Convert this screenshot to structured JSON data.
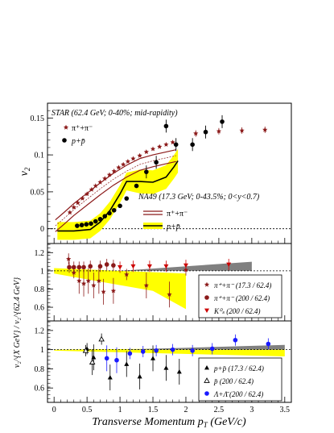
{
  "chart_data": [
    {
      "type": "scatter",
      "panel": "top",
      "ylabel": "v",
      "ylabel_sub": "2",
      "ylim": [
        -0.02,
        0.17
      ],
      "yticks": [
        0,
        0.05,
        0.1,
        0.15
      ],
      "ytick_labels": [
        "0",
        "0.05",
        "0.1",
        "0.15"
      ],
      "legend_star_title": "STAR (62.4 GeV; 0-40%; mid-rapidity)",
      "legend_star": [
        "π⁺+π⁻",
        "p+p̄"
      ],
      "legend_na49_title": "NA49 (17.3 GeV; 0-43.5%; 0<y<0.7)",
      "legend_na49": [
        "π⁺+π⁻",
        "p+p̄"
      ],
      "series": [
        {
          "name": "π⁺+π⁻",
          "marker": "star",
          "color": "#8b1a1a",
          "x": [
            0.24,
            0.3,
            0.36,
            0.43,
            0.5,
            0.57,
            0.63,
            0.7,
            0.77,
            0.84,
            0.91,
            0.98,
            1.05,
            1.12,
            1.2,
            1.3,
            1.4,
            1.5,
            1.6,
            1.7,
            1.8,
            2.15,
            2.5,
            2.85,
            3.2
          ],
          "y": [
            0.022,
            0.029,
            0.035,
            0.041,
            0.047,
            0.053,
            0.058,
            0.063,
            0.068,
            0.073,
            0.078,
            0.083,
            0.087,
            0.091,
            0.095,
            0.099,
            0.104,
            0.108,
            0.111,
            0.114,
            0.117,
            0.129,
            0.132,
            0.133,
            0.134
          ]
        },
        {
          "name": "p+p̄",
          "marker": "circle",
          "color": "#000000",
          "x": [
            0.35,
            0.42,
            0.49,
            0.56,
            0.63,
            0.7,
            0.77,
            0.84,
            0.91,
            1.0,
            1.1,
            1.25,
            1.4,
            1.55,
            1.7,
            1.85,
            2.1,
            2.3,
            2.55
          ],
          "y": [
            0.004,
            0.005,
            0.006,
            0.007,
            0.01,
            0.013,
            0.017,
            0.021,
            0.025,
            0.031,
            0.041,
            0.058,
            0.077,
            0.09,
            0.139,
            0.114,
            0.114,
            0.131,
            0.145
          ]
        }
      ],
      "na49_pion_center": {
        "x": [
          0.02,
          0.15,
          0.3,
          0.5,
          0.7,
          0.9,
          1.1,
          1.3,
          1.5,
          1.7,
          1.85
        ],
        "y": [
          0.004,
          0.014,
          0.026,
          0.04,
          0.054,
          0.067,
          0.078,
          0.087,
          0.092,
          0.096,
          0.099
        ]
      },
      "na49_proton_center": {
        "x": [
          0.05,
          0.3,
          0.55,
          0.7,
          0.85,
          1.0,
          1.1,
          1.3,
          1.5,
          1.7,
          1.82,
          1.88
        ],
        "y": [
          -0.003,
          -0.003,
          -0.001,
          0.009,
          0.025,
          0.047,
          0.064,
          0.064,
          0.063,
          0.07,
          0.084,
          0.092
        ]
      }
    },
    {
      "type": "scatter",
      "panel": "middle",
      "ylim": [
        0.45,
        1.3
      ],
      "yticks": [
        0.6,
        0.8,
        1.0,
        1.2
      ],
      "ytick_labels": [
        "0.6",
        "0.8",
        "1",
        "1.2"
      ],
      "ylabel_html": "v₂^{X GeV} / v₂^{62.4 GeV}",
      "legend": [
        "π⁺+π⁻ (17.3 / 62.4)",
        "π⁺+π⁻ (200 / 62.4)",
        "K⁰ₛ (200 / 62.4)"
      ],
      "series": [
        {
          "name": "π⁺+π⁻ (17.3 / 62.4)",
          "marker": "star",
          "color": "#8b1a1a",
          "x": [
            0.22,
            0.3,
            0.38,
            0.45,
            0.52,
            0.6,
            0.68,
            0.75,
            0.9,
            1.1,
            1.4,
            1.75,
            2.0
          ],
          "y": [
            1.13,
            0.98,
            0.89,
            0.86,
            0.89,
            0.84,
            0.89,
            0.77,
            0.78,
            0.96,
            0.84,
            0.74,
            1.01
          ]
        },
        {
          "name": "π⁺+π⁻ (200 / 62.4)",
          "marker": "circle",
          "color": "#8b1a1a",
          "x": [
            0.23,
            0.3,
            0.38,
            0.45,
            0.55,
            0.7,
            0.8,
            0.9
          ],
          "y": [
            1.04,
            1.04,
            1.04,
            1.04,
            1.05,
            1.05,
            1.07,
            1.06
          ]
        },
        {
          "name": "K⁰ₛ (200 / 62.4)",
          "marker": "triangle-down",
          "color": "#cc0000",
          "x": [
            1.0,
            1.2,
            1.45,
            1.7,
            2.0,
            2.65
          ],
          "y": [
            1.04,
            1.05,
            1.05,
            1.05,
            1.06,
            1.07
          ]
        }
      ]
    },
    {
      "type": "scatter",
      "panel": "bottom",
      "ylim": [
        0.45,
        1.3
      ],
      "yticks": [
        0.6,
        0.8,
        1.0,
        1.2
      ],
      "ytick_labels": [
        "0.6",
        "0.8",
        "1",
        "1.2"
      ],
      "xlabel": "Transverse Momentum p",
      "xlabel_sub": "T",
      "xlabel_unit": " (GeV/c)",
      "xlim": [
        -0.1,
        3.6
      ],
      "xticks": [
        0,
        0.5,
        1,
        1.5,
        2,
        2.5,
        3,
        3.5
      ],
      "xtick_labels": [
        "0",
        "0.5",
        "1",
        "1.5",
        "2",
        "2.5",
        "3",
        "3.5"
      ],
      "legend": [
        "p+p̄ (17.3 / 62.4)",
        "p̄ (200 / 62.4)",
        "Λ+Λ̄ (200 / 62.4)"
      ],
      "series": [
        {
          "name": "p+p̄ (17.3 / 62.4)",
          "marker": "triangle",
          "color": "#000000",
          "x": [
            0.5,
            0.6,
            0.85,
            1.1,
            1.3,
            1.5,
            1.7,
            1.9
          ],
          "y": [
            1.01,
            0.92,
            0.71,
            0.85,
            0.72,
            0.91,
            0.81,
            0.77
          ]
        },
        {
          "name": "p̄ (200 / 62.4)",
          "marker": "triangle-open",
          "color": "#000000",
          "x": [
            0.48,
            0.58,
            0.72
          ],
          "y": [
            0.99,
            0.87,
            1.11
          ]
        },
        {
          "name": "Λ+Λ̄ (200 / 62.4)",
          "marker": "circle",
          "color": "#1a1aff",
          "x": [
            0.8,
            0.95,
            1.15,
            1.35,
            1.55,
            1.8,
            2.1,
            2.4,
            2.75,
            3.25
          ],
          "y": [
            0.91,
            0.89,
            0.96,
            0.98,
            0.99,
            1.0,
            0.99,
            1.01,
            1.1,
            1.06
          ]
        }
      ]
    }
  ]
}
